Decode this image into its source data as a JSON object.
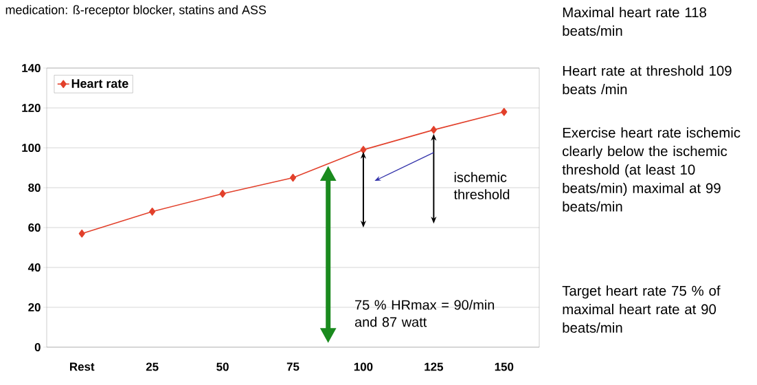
{
  "chart_data": {
    "type": "line",
    "title": "medication: ß-receptor blocker, statins and ASS",
    "categories": [
      "Rest",
      "25",
      "50",
      "75",
      "100",
      "125",
      "150"
    ],
    "series": [
      {
        "name": "Heart rate",
        "color": "#e2402b",
        "values": [
          57,
          68,
          77,
          85,
          99,
          109,
          118
        ]
      }
    ],
    "ylim": [
      0,
      140
    ],
    "yticks": [
      0,
      20,
      40,
      60,
      80,
      100,
      120,
      140
    ],
    "grid": "y",
    "legend": "top left",
    "marker": "diamond",
    "line_style": "solid",
    "annotations": [
      "ischemic threshold",
      "75 % HRmax = 90/min and 87 watt",
      "Maximal heart rate 118 beats/min",
      "Heart rate at threshold 109 beats /min",
      "Exercise heart rate ischemic clearly below the ischemic threshold (at least 10 beats/min) maximal at 99 beats/min",
      "Target heart rate 75 % of maximal heart rate at 90 beats/min"
    ]
  }
}
